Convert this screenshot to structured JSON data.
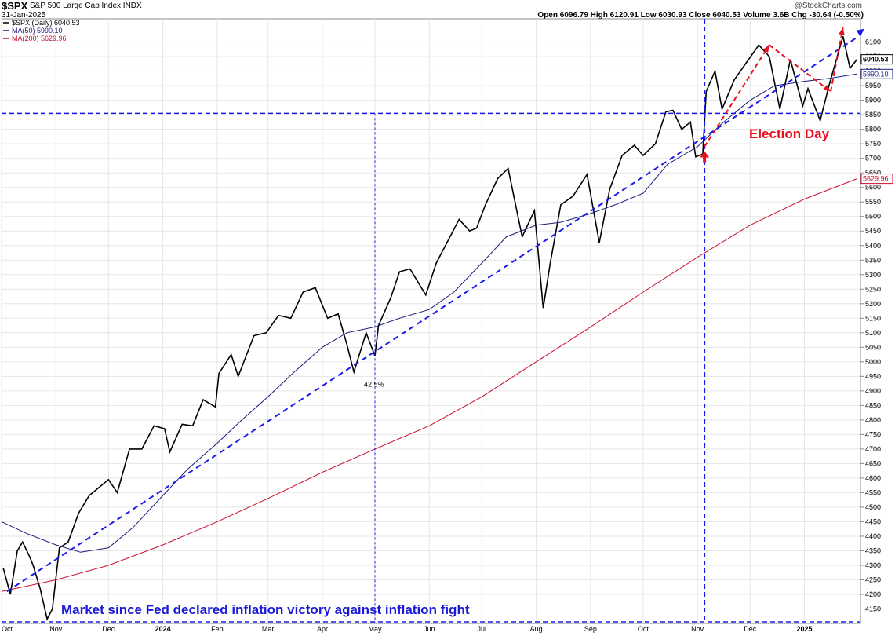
{
  "header": {
    "symbol": "$SPX",
    "name": "S&P 500 Large Cap Index",
    "exchange": "INDX",
    "date": "31-Jan-2025",
    "copyright": "@StockCharts.com",
    "quote": "Open 6096.79  High 6120.91  Low 6030.93  Close 6040.53  Volume 3.6B  Chg -30.64 (-0.50%)"
  },
  "legend": [
    {
      "label": "$SPX (Daily) 6040.53",
      "color": "#000000"
    },
    {
      "label": "MA(50) 5990.10",
      "color": "#1a1a7a"
    },
    {
      "label": "MA(200) 5629.96",
      "color": "#c8102e"
    }
  ],
  "annotations": {
    "election": "Election Day",
    "gain": "42.5%",
    "bottom_caption": "Market since Fed declared inflation victory against inflation fight"
  },
  "price_labels": {
    "close": "6040.53",
    "ma50": "5990.10",
    "ma200": "5629.96"
  },
  "chart_data": {
    "type": "line",
    "title": "$SPX S&P 500 Large Cap Index",
    "ylim": [
      4100,
      6180
    ],
    "yticks": [
      4150,
      4200,
      4250,
      4300,
      4350,
      4400,
      4450,
      4500,
      4550,
      4600,
      4650,
      4700,
      4750,
      4800,
      4850,
      4900,
      4950,
      5000,
      5050,
      5100,
      5150,
      5200,
      5250,
      5300,
      5350,
      5400,
      5450,
      5500,
      5550,
      5600,
      5650,
      5700,
      5750,
      5800,
      5850,
      5900,
      5950,
      6000,
      6050,
      6100
    ],
    "xticks": [
      {
        "date": "2023-10-01",
        "label": "Oct"
      },
      {
        "date": "2023-11-01",
        "label": "Nov"
      },
      {
        "date": "2023-12-01",
        "label": "Dec"
      },
      {
        "date": "2024-01-01",
        "label": "2024"
      },
      {
        "date": "2024-02-01",
        "label": "Feb"
      },
      {
        "date": "2024-03-01",
        "label": "Mar"
      },
      {
        "date": "2024-04-01",
        "label": "Apr"
      },
      {
        "date": "2024-05-01",
        "label": "May"
      },
      {
        "date": "2024-06-01",
        "label": "Jun"
      },
      {
        "date": "2024-07-01",
        "label": "Jul"
      },
      {
        "date": "2024-08-01",
        "label": "Aug"
      },
      {
        "date": "2024-09-01",
        "label": "Sep"
      },
      {
        "date": "2024-10-01",
        "label": "Oct"
      },
      {
        "date": "2024-11-01",
        "label": "Nov"
      },
      {
        "date": "2024-12-01",
        "label": "Dec"
      },
      {
        "date": "2025-01-01",
        "label": "2025"
      }
    ],
    "xlim": [
      "2023-10-01",
      "2025-02-02"
    ],
    "series": [
      {
        "name": "$SPX (Daily)",
        "color": "#000000",
        "points": [
          [
            "2023-10-02",
            4290
          ],
          [
            "2023-10-06",
            4200
          ],
          [
            "2023-10-10",
            4350
          ],
          [
            "2023-10-13",
            4380
          ],
          [
            "2023-10-17",
            4330
          ],
          [
            "2023-10-19",
            4300
          ],
          [
            "2023-10-23",
            4220
          ],
          [
            "2023-10-27",
            4115
          ],
          [
            "2023-10-30",
            4150
          ],
          [
            "2023-11-03",
            4360
          ],
          [
            "2023-11-08",
            4380
          ],
          [
            "2023-11-14",
            4480
          ],
          [
            "2023-11-20",
            4540
          ],
          [
            "2023-11-24",
            4560
          ],
          [
            "2023-12-01",
            4595
          ],
          [
            "2023-12-06",
            4550
          ],
          [
            "2023-12-13",
            4700
          ],
          [
            "2023-12-20",
            4700
          ],
          [
            "2023-12-27",
            4780
          ],
          [
            "2024-01-02",
            4770
          ],
          [
            "2024-01-05",
            4690
          ],
          [
            "2024-01-12",
            4785
          ],
          [
            "2024-01-18",
            4780
          ],
          [
            "2024-01-24",
            4870
          ],
          [
            "2024-01-31",
            4845
          ],
          [
            "2024-02-02",
            4960
          ],
          [
            "2024-02-09",
            5025
          ],
          [
            "2024-02-13",
            4950
          ],
          [
            "2024-02-22",
            5090
          ],
          [
            "2024-02-29",
            5100
          ],
          [
            "2024-03-07",
            5160
          ],
          [
            "2024-03-14",
            5150
          ],
          [
            "2024-03-21",
            5240
          ],
          [
            "2024-03-28",
            5255
          ],
          [
            "2024-04-04",
            5150
          ],
          [
            "2024-04-10",
            5165
          ],
          [
            "2024-04-15",
            5060
          ],
          [
            "2024-04-19",
            4965
          ],
          [
            "2024-04-26",
            5100
          ],
          [
            "2024-05-01",
            5020
          ],
          [
            "2024-05-03",
            5125
          ],
          [
            "2024-05-10",
            5220
          ],
          [
            "2024-05-15",
            5310
          ],
          [
            "2024-05-21",
            5320
          ],
          [
            "2024-05-30",
            5230
          ],
          [
            "2024-06-05",
            5340
          ],
          [
            "2024-06-12",
            5420
          ],
          [
            "2024-06-18",
            5490
          ],
          [
            "2024-06-24",
            5450
          ],
          [
            "2024-06-28",
            5460
          ],
          [
            "2024-07-03",
            5540
          ],
          [
            "2024-07-10",
            5630
          ],
          [
            "2024-07-16",
            5665
          ],
          [
            "2024-07-24",
            5430
          ],
          [
            "2024-07-31",
            5520
          ],
          [
            "2024-08-05",
            5185
          ],
          [
            "2024-08-09",
            5340
          ],
          [
            "2024-08-15",
            5540
          ],
          [
            "2024-08-22",
            5570
          ],
          [
            "2024-08-30",
            5645
          ],
          [
            "2024-09-06",
            5410
          ],
          [
            "2024-09-12",
            5595
          ],
          [
            "2024-09-19",
            5710
          ],
          [
            "2024-09-26",
            5745
          ],
          [
            "2024-10-01",
            5710
          ],
          [
            "2024-10-08",
            5750
          ],
          [
            "2024-10-14",
            5860
          ],
          [
            "2024-10-18",
            5865
          ],
          [
            "2024-10-23",
            5800
          ],
          [
            "2024-10-28",
            5825
          ],
          [
            "2024-10-31",
            5705
          ],
          [
            "2024-11-04",
            5715
          ],
          [
            "2024-11-06",
            5930
          ],
          [
            "2024-11-11",
            6000
          ],
          [
            "2024-11-15",
            5870
          ],
          [
            "2024-11-22",
            5970
          ],
          [
            "2024-11-29",
            6030
          ],
          [
            "2024-12-06",
            6090
          ],
          [
            "2024-12-12",
            6050
          ],
          [
            "2024-12-18",
            5870
          ],
          [
            "2024-12-24",
            6040
          ],
          [
            "2024-12-31",
            5880
          ],
          [
            "2025-01-03",
            5940
          ],
          [
            "2025-01-10",
            5830
          ],
          [
            "2025-01-15",
            5950
          ],
          [
            "2025-01-23",
            6120
          ],
          [
            "2025-01-27",
            6010
          ],
          [
            "2025-01-31",
            6040
          ]
        ]
      },
      {
        "name": "MA(50)",
        "color": "#1a1a7a",
        "points": [
          [
            "2023-10-01",
            4450
          ],
          [
            "2023-10-15",
            4410
          ],
          [
            "2023-11-01",
            4370
          ],
          [
            "2023-11-15",
            4345
          ],
          [
            "2023-12-01",
            4360
          ],
          [
            "2023-12-15",
            4430
          ],
          [
            "2024-01-01",
            4540
          ],
          [
            "2024-01-15",
            4630
          ],
          [
            "2024-02-01",
            4720
          ],
          [
            "2024-02-15",
            4800
          ],
          [
            "2024-03-01",
            4880
          ],
          [
            "2024-03-15",
            4960
          ],
          [
            "2024-04-01",
            5050
          ],
          [
            "2024-04-15",
            5100
          ],
          [
            "2024-05-01",
            5120
          ],
          [
            "2024-05-15",
            5150
          ],
          [
            "2024-06-01",
            5180
          ],
          [
            "2024-06-15",
            5240
          ],
          [
            "2024-07-01",
            5340
          ],
          [
            "2024-07-15",
            5430
          ],
          [
            "2024-08-01",
            5470
          ],
          [
            "2024-08-15",
            5480
          ],
          [
            "2024-09-01",
            5510
          ],
          [
            "2024-09-15",
            5540
          ],
          [
            "2024-10-01",
            5580
          ],
          [
            "2024-10-15",
            5680
          ],
          [
            "2024-11-01",
            5740
          ],
          [
            "2024-11-15",
            5820
          ],
          [
            "2024-12-01",
            5900
          ],
          [
            "2024-12-15",
            5950
          ],
          [
            "2025-01-01",
            5965
          ],
          [
            "2025-01-15",
            5975
          ],
          [
            "2025-01-31",
            5990
          ]
        ]
      },
      {
        "name": "MA(200)",
        "color": "#c8102e",
        "points": [
          [
            "2023-10-01",
            4210
          ],
          [
            "2023-11-01",
            4250
          ],
          [
            "2023-12-01",
            4300
          ],
          [
            "2024-01-01",
            4370
          ],
          [
            "2024-02-01",
            4450
          ],
          [
            "2024-03-01",
            4530
          ],
          [
            "2024-04-01",
            4620
          ],
          [
            "2024-05-01",
            4700
          ],
          [
            "2024-06-01",
            4780
          ],
          [
            "2024-07-01",
            4880
          ],
          [
            "2024-08-01",
            5000
          ],
          [
            "2024-09-01",
            5120
          ],
          [
            "2024-10-01",
            5240
          ],
          [
            "2024-11-01",
            5360
          ],
          [
            "2024-12-01",
            5470
          ],
          [
            "2025-01-01",
            5560
          ],
          [
            "2025-01-31",
            5630
          ]
        ]
      }
    ]
  }
}
